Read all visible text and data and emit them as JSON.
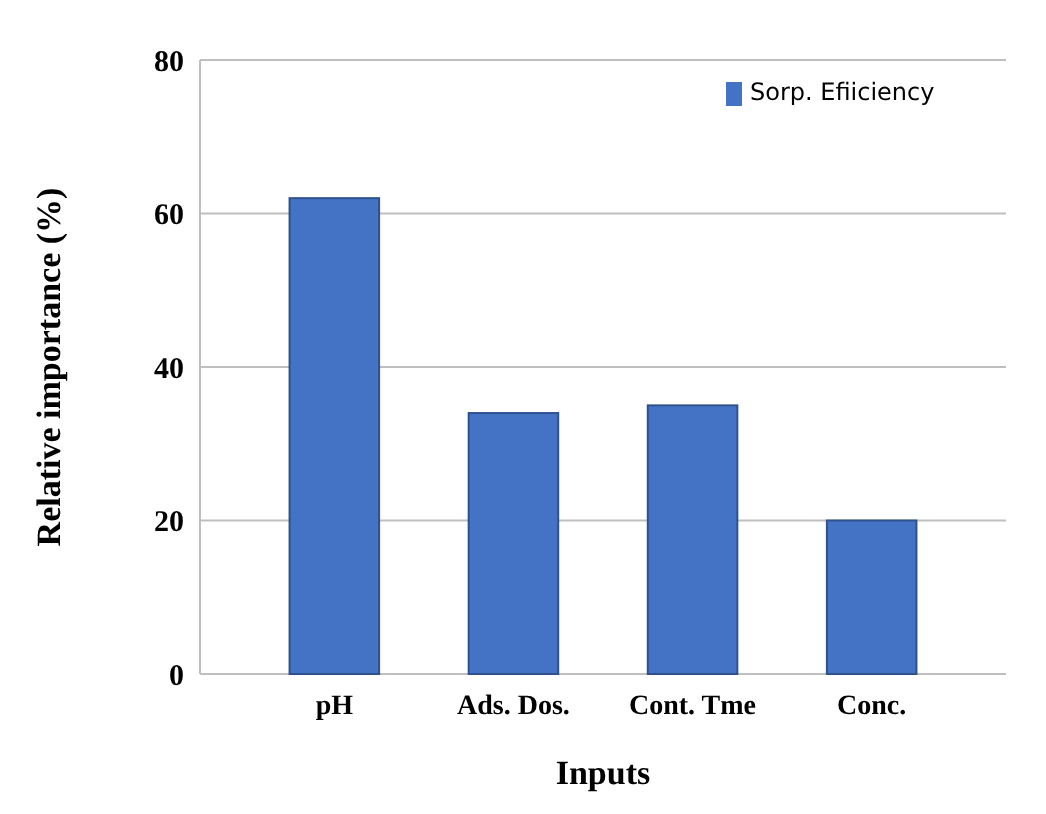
{
  "chart_data": {
    "type": "bar",
    "xlabel": "Inputs",
    "ylabel": "Relative importance (%)",
    "categories": [
      "pH",
      "Ads. Dos.",
      "Cont. Tme",
      "Conc."
    ],
    "series": [
      {
        "name": "Sorp. Efiiciency",
        "color": "#4472c4",
        "values": [
          62,
          34,
          35,
          20
        ]
      }
    ],
    "ylim": [
      0,
      80
    ],
    "yticks": [
      0,
      20,
      40,
      60,
      80
    ],
    "grid": "y",
    "legend": "top right"
  }
}
